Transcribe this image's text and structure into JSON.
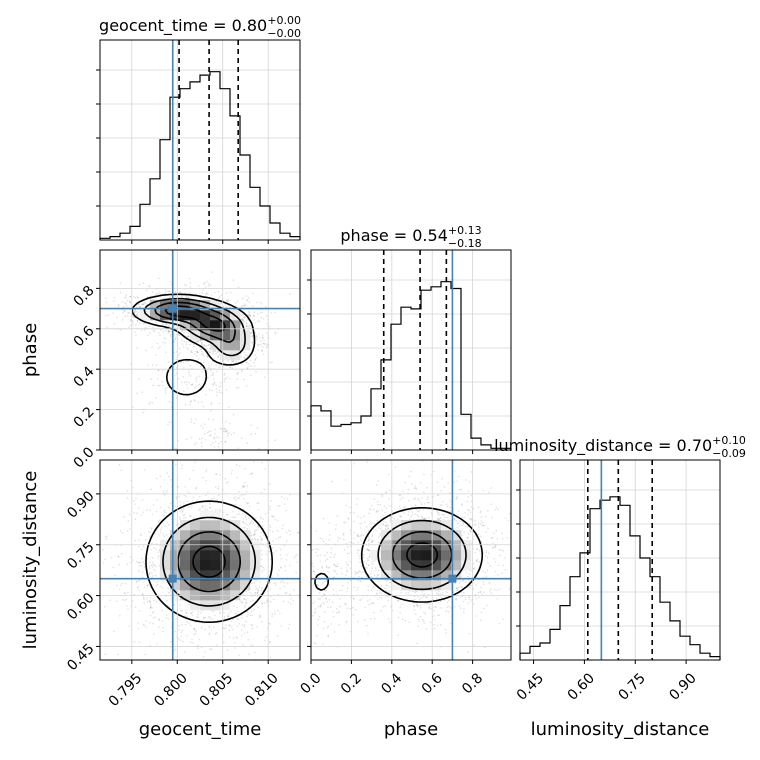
{
  "chart_data": {
    "type": "corner",
    "truth_color": "#4682b4",
    "parameters": [
      {
        "name": "geocent_time",
        "title": {
          "prefix": "geocent_time = ",
          "value": "0.80",
          "plus": "+0.00",
          "minus": "−0.00"
        },
        "range": [
          0.7915,
          0.8135
        ],
        "truth": 0.7995,
        "quantiles": [
          0.8002,
          0.8035,
          0.8067
        ],
        "ticks": [
          0.795,
          0.8,
          0.805,
          0.81
        ],
        "tick_labels": [
          "0.795",
          "0.800",
          "0.805",
          "0.810"
        ]
      },
      {
        "name": "phase",
        "title": {
          "prefix": "phase = ",
          "value": "0.54",
          "plus": "+0.13",
          "minus": "−0.18"
        },
        "range": [
          0.0,
          0.99
        ],
        "truth": 0.7,
        "quantiles": [
          0.36,
          0.54,
          0.67
        ],
        "ticks": [
          0.0,
          0.2,
          0.4,
          0.6,
          0.8
        ],
        "tick_labels": [
          "0.0",
          "0.2",
          "0.4",
          "0.6",
          "0.8"
        ]
      },
      {
        "name": "luminosity_distance",
        "title": {
          "prefix": "luminosity_distance = ",
          "value": "0.70",
          "plus": "+0.10",
          "minus": "−0.09"
        },
        "range": [
          0.41,
          1.0
        ],
        "truth": 0.65,
        "quantiles": [
          0.61,
          0.7,
          0.8
        ],
        "ticks": [
          0.45,
          0.6,
          0.75,
          0.9
        ],
        "tick_labels": [
          "0.45",
          "0.60",
          "0.75",
          "0.90"
        ]
      }
    ],
    "histograms": {
      "geocent_time": [
        0.01,
        0.02,
        0.04,
        0.08,
        0.21,
        0.36,
        0.59,
        0.84,
        0.89,
        0.93,
        0.97,
        0.99,
        0.89,
        0.73,
        0.5,
        0.31,
        0.2,
        0.1,
        0.04,
        0.02
      ],
      "phase": [
        0.26,
        0.23,
        0.14,
        0.15,
        0.16,
        0.2,
        0.36,
        0.53,
        0.74,
        0.84,
        0.83,
        0.94,
        0.96,
        0.99,
        0.95,
        0.21,
        0.07,
        0.03,
        0.01,
        0.01
      ],
      "luminosity_distance": [
        0.04,
        0.08,
        0.1,
        0.18,
        0.32,
        0.49,
        0.63,
        0.89,
        0.94,
        0.96,
        0.91,
        0.73,
        0.6,
        0.49,
        0.34,
        0.23,
        0.14,
        0.09,
        0.04,
        0.02
      ]
    },
    "blobs": {
      "phase_vs_geocent_time": [
        {
          "x": 0.8,
          "y": 0.69,
          "sx": 0.0025,
          "sy": 0.04,
          "w": 1.0
        },
        {
          "x": 0.804,
          "y": 0.62,
          "sx": 0.002,
          "sy": 0.05,
          "w": 0.9
        },
        {
          "x": 0.806,
          "y": 0.52,
          "sx": 0.0015,
          "sy": 0.06,
          "w": 0.5
        },
        {
          "x": 0.801,
          "y": 0.36,
          "sx": 0.002,
          "sy": 0.08,
          "w": 0.25
        },
        {
          "x": 0.805,
          "y": 0.05,
          "sx": 0.002,
          "sy": 0.04,
          "w": 0.12
        }
      ],
      "luminosity_distance_vs_geocent_time": [
        {
          "x": 0.8035,
          "y": 0.7,
          "sx": 0.0035,
          "sy": 0.09,
          "w": 1.0
        }
      ],
      "luminosity_distance_vs_phase": [
        {
          "x": 0.55,
          "y": 0.72,
          "sx": 0.15,
          "sy": 0.07,
          "w": 1.0
        },
        {
          "x": 0.05,
          "y": 0.64,
          "sx": 0.08,
          "sy": 0.06,
          "w": 0.15
        }
      ]
    }
  }
}
